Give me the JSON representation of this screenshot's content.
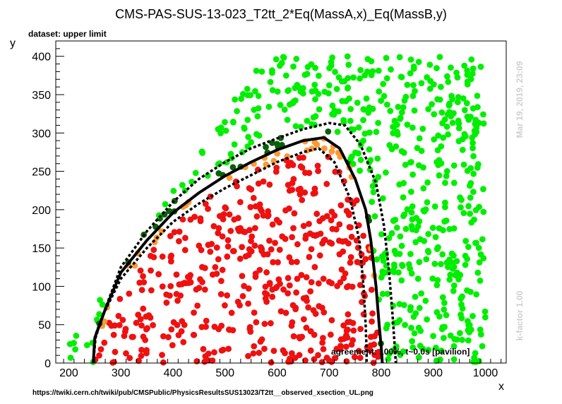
{
  "header": {
    "title": "CMS-PAS-SUS-13-023_T2tt_2*Eq(MassA,x)_Eq(MassB,y)",
    "dataset": "dataset: upper limit"
  },
  "side": {
    "timestamp": "Mar 19, 2019, 23:09",
    "kfactor": "k-factor 1.00"
  },
  "footer": {
    "agreement": "agreement: 100%, t~0.0s [pavilion]",
    "url": "https://twiki.cern.ch/twiki/pub/CMSPublic/PhysicsResultsSUS13023/T2tt__observed_xsection_UL.png"
  },
  "colors": {
    "allowed": "#00ee00",
    "near_allowed": "#0a5f0a",
    "near_excluded": "#ff9933",
    "excluded": "#ee1111",
    "curve": "#000000"
  },
  "chart_data": {
    "type": "scatter",
    "title": "CMS-PAS-SUS-13-023_T2tt_2*Eq(MassA,x)_Eq(MassB,y)",
    "xlabel": "x",
    "ylabel": "y",
    "xlim": [
      175,
      1040
    ],
    "ylim": [
      0,
      420
    ],
    "xticks": [
      200,
      300,
      400,
      500,
      600,
      700,
      800,
      900,
      1000
    ],
    "yticks": [
      0,
      50,
      100,
      150,
      200,
      250,
      300,
      350,
      400
    ],
    "grid": false,
    "point_classes": [
      {
        "class": "excluded",
        "region": "well inside the observed limit"
      },
      {
        "class": "near_excluded",
        "region": "just inside the observed limit"
      },
      {
        "class": "near_allowed",
        "region": "just outside the observed limit"
      },
      {
        "class": "allowed",
        "region": "well outside the observed limit"
      }
    ],
    "curves": [
      {
        "id": "observed",
        "style": "solid",
        "x": [
          247,
          250,
          270,
          300,
          350,
          400,
          450,
          500,
          550,
          600,
          650,
          690,
          720,
          750,
          770,
          780,
          790,
          796,
          800,
          802
        ],
        "y": [
          0,
          33,
          70,
          118,
          160,
          196,
          222,
          244,
          262,
          278,
          290,
          294,
          280,
          240,
          200,
          160,
          100,
          50,
          20,
          0
        ]
      },
      {
        "id": "expected_plus",
        "style": "dotted",
        "x": [
          247,
          252,
          275,
          300,
          350,
          400,
          450,
          500,
          550,
          600,
          650,
          700,
          730,
          760,
          790,
          805,
          815,
          822,
          826,
          828
        ],
        "y": [
          0,
          38,
          80,
          125,
          172,
          210,
          240,
          262,
          280,
          293,
          305,
          313,
          310,
          285,
          235,
          180,
          120,
          60,
          20,
          0
        ]
      },
      {
        "id": "expected_minus",
        "style": "dotted",
        "x": [
          247,
          249,
          265,
          300,
          350,
          400,
          450,
          500,
          550,
          600,
          650,
          680,
          710,
          740,
          758,
          766,
          770,
          772,
          772
        ],
        "y": [
          0,
          28,
          62,
          110,
          150,
          184,
          208,
          228,
          245,
          262,
          275,
          280,
          262,
          215,
          160,
          100,
          50,
          15,
          0
        ]
      }
    ]
  }
}
